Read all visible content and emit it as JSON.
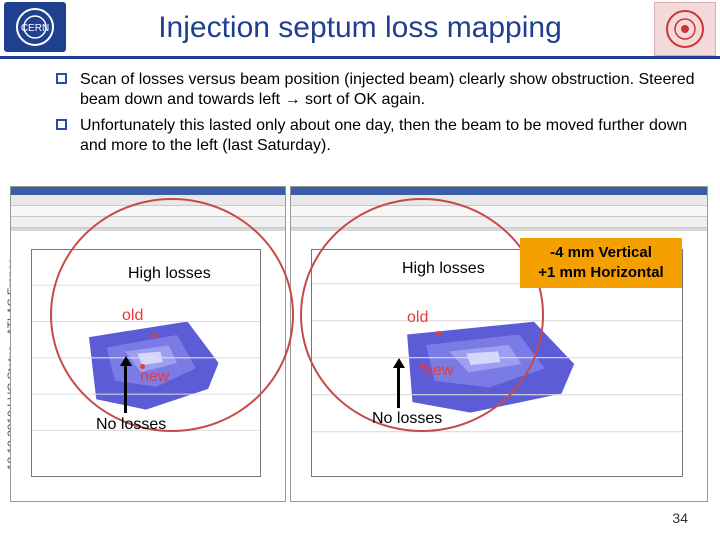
{
  "header": {
    "title": "Injection septum loss mapping"
  },
  "bullets": [
    "Scan of losses versus beam position (injected beam) clearly show obstruction. Steered beam down and towards left → sort of OK again.",
    "Unfortunately this lasted only about one day, then the beam to be moved further down and more to the left (last Saturday)."
  ],
  "footer": {
    "vertical_text": "18.10.2010     LHC Status - ATLAS France"
  },
  "overlays": {
    "high_losses": "High losses",
    "no_losses": "No losses",
    "old": "old",
    "new": "new"
  },
  "callout": {
    "line1": "-4 mm Vertical",
    "line2": "+1 mm Horizontal"
  },
  "slide_number": "34",
  "colors": {
    "title": "#1f3f8f",
    "accent_red": "#e53b3b",
    "callout": "#f4a000",
    "plot_blue": "#4a4ac8"
  }
}
